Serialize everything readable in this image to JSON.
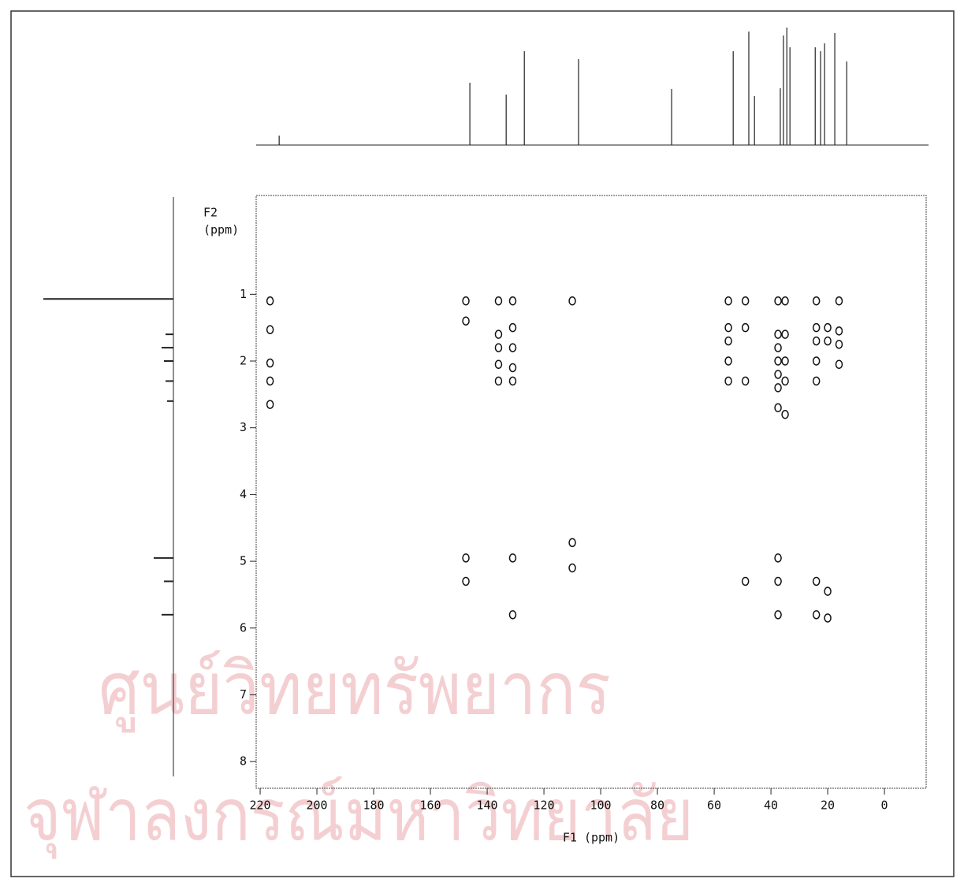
{
  "chart_data": {
    "type": "scatter",
    "x_label": "F1 (ppm)",
    "y_label": [
      "F2",
      "(ppm)"
    ],
    "watermark": [
      "ศูนย์วิทยทรัพยากร",
      "จุฬาลงกรณ์มหาวิทยาลัย"
    ],
    "xlim": [
      221.4,
      -14.7
    ],
    "ylim": [
      -0.48,
      8.4
    ],
    "xticks": [
      220,
      200,
      180,
      160,
      140,
      120,
      100,
      80,
      60,
      40,
      20,
      0
    ],
    "yticks": [
      1,
      2,
      3,
      4,
      5,
      6,
      7,
      8
    ],
    "color": "#111111",
    "x": [
      216.5,
      216.5,
      216.5,
      216.5,
      216.5,
      147.5,
      147.5,
      147.5,
      147.5,
      136,
      136,
      136,
      136,
      136,
      131,
      131,
      131,
      131,
      131,
      131,
      131,
      110,
      110,
      110,
      55,
      55,
      55,
      55,
      55,
      49,
      49,
      49,
      49,
      37.5,
      37.5,
      37.5,
      37.5,
      37.5,
      37.5,
      37.5,
      37.5,
      37.5,
      37.5,
      35,
      35,
      35,
      35,
      35,
      24,
      24,
      24,
      24,
      24,
      24,
      24,
      20,
      20,
      20,
      20,
      16,
      16,
      16,
      16
    ],
    "values": [
      1.1,
      1.53,
      2.03,
      2.3,
      2.65,
      1.1,
      1.4,
      4.95,
      5.3,
      1.1,
      1.6,
      1.8,
      2.05,
      2.3,
      1.1,
      1.5,
      1.8,
      2.1,
      2.3,
      4.95,
      5.8,
      1.1,
      4.72,
      5.1,
      1.1,
      1.5,
      1.7,
      2.0,
      2.3,
      1.1,
      1.5,
      2.3,
      5.3,
      1.1,
      1.6,
      1.8,
      2.0,
      2.2,
      2.4,
      2.7,
      4.95,
      5.3,
      5.8,
      1.1,
      1.6,
      2.0,
      2.3,
      2.8,
      1.1,
      1.5,
      1.7,
      2.0,
      2.3,
      5.3,
      5.8,
      1.5,
      1.7,
      5.45,
      5.85,
      1.1,
      1.55,
      1.75,
      2.05
    ],
    "f1_projection": {
      "x": [
        213.3,
        146.1,
        133.3,
        126.9,
        107.8,
        75.0,
        53.3,
        47.8,
        45.8,
        36.7,
        35.6,
        34.4,
        33.3,
        24.4,
        22.5,
        21.1,
        17.5,
        13.3
      ],
      "heights": [
        12,
        79,
        64,
        119,
        109,
        71,
        119,
        144,
        62,
        72,
        139,
        149,
        124,
        124,
        119,
        129,
        142,
        106
      ]
    },
    "f2_projection": {
      "y": [
        1.07,
        1.6,
        1.8,
        2.0,
        2.3,
        2.6,
        4.95,
        5.3,
        5.8
      ],
      "heights": [
        165,
        10,
        15,
        12,
        10,
        8,
        25,
        12,
        15
      ]
    }
  }
}
